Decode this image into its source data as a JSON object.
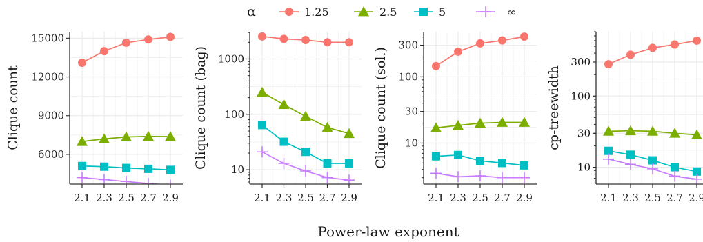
{
  "xlabel": "Power-law exponent",
  "legend": {
    "title": "α",
    "placement": "top"
  },
  "colors": {
    "1.25": "#F8766D",
    "2.5": "#7CAE00",
    "5": "#00BFC4",
    "inf": "#C77CFF",
    "grid": "#ebebeb",
    "axis": "#333333"
  },
  "chart_data": [
    {
      "type": "line",
      "ylabel": "Clique count",
      "scale": "linear",
      "ylim": [
        3700,
        15500
      ],
      "yticks": [
        6000,
        9000,
        12000,
        15000
      ],
      "ytick_labels": [
        "6000",
        "9000",
        "12000",
        "15000"
      ],
      "x": [
        2.1,
        2.3,
        2.5,
        2.7,
        2.9
      ],
      "xtick_labels": [
        "2.1",
        "2.3",
        "2.5",
        "2.7",
        "2.9"
      ],
      "series": [
        {
          "name": "1.25",
          "marker": "circle",
          "values": [
            13100,
            14000,
            14650,
            14900,
            15100
          ]
        },
        {
          "name": "2.5",
          "marker": "triangle",
          "values": [
            7000,
            7200,
            7350,
            7400,
            7380
          ]
        },
        {
          "name": "5",
          "marker": "square",
          "values": [
            5100,
            5050,
            4950,
            4880,
            4800
          ]
        },
        {
          "name": "∞",
          "marker": "cross",
          "values": [
            4200,
            4050,
            3900,
            3750,
            3620
          ]
        }
      ]
    },
    {
      "type": "line",
      "ylabel": "Clique count (bag)",
      "scale": "log10",
      "ylim": [
        5.5,
        3100
      ],
      "yticks": [
        10,
        100,
        1000
      ],
      "ytick_labels": [
        "10",
        "100",
        "1000"
      ],
      "x": [
        2.1,
        2.3,
        2.5,
        2.7,
        2.9
      ],
      "xtick_labels": [
        "2.1",
        "2.3",
        "2.5",
        "2.7",
        "2.9"
      ],
      "series": [
        {
          "name": "1.25",
          "marker": "circle",
          "values": [
            2550,
            2300,
            2200,
            2000,
            2000
          ]
        },
        {
          "name": "2.5",
          "marker": "triangle",
          "values": [
            250,
            150,
            92,
            58,
            45
          ]
        },
        {
          "name": "5",
          "marker": "square",
          "values": [
            64,
            32,
            21,
            13,
            13
          ]
        },
        {
          "name": "∞",
          "marker": "cross",
          "values": [
            21,
            13,
            9.5,
            7.2,
            6.5
          ]
        }
      ]
    },
    {
      "type": "line",
      "ylabel": "Clique count (sol.)",
      "scale": "log10",
      "ylim": [
        2.4,
        480
      ],
      "yticks": [
        10,
        30,
        100,
        300
      ],
      "ytick_labels": [
        "10",
        "30",
        "100",
        "300"
      ],
      "x": [
        2.1,
        2.3,
        2.5,
        2.7,
        2.9
      ],
      "xtick_labels": [
        "2.1",
        "2.3",
        "2.5",
        "2.7",
        "2.9"
      ],
      "series": [
        {
          "name": "1.25",
          "marker": "circle",
          "values": [
            145,
            240,
            320,
            355,
            405
          ]
        },
        {
          "name": "2.5",
          "marker": "triangle",
          "values": [
            17,
            18.5,
            20,
            20.5,
            20.5
          ]
        },
        {
          "name": "5",
          "marker": "square",
          "values": [
            6.3,
            6.6,
            5.4,
            5.0,
            4.6
          ]
        },
        {
          "name": "∞",
          "marker": "cross",
          "values": [
            3.5,
            3.1,
            3.2,
            3.0,
            3.0
          ]
        }
      ]
    },
    {
      "type": "line",
      "ylabel": "cp-treewidth",
      "scale": "log10",
      "ylim": [
        5.8,
        800
      ],
      "yticks": [
        10,
        30,
        100,
        300
      ],
      "ytick_labels": [
        "10",
        "30",
        "100",
        "300"
      ],
      "x": [
        2.1,
        2.3,
        2.5,
        2.7,
        2.9
      ],
      "xtick_labels": [
        "2.1",
        "2.3",
        "2.5",
        "2.7",
        "2.9"
      ],
      "series": [
        {
          "name": "1.25",
          "marker": "circle",
          "values": [
            280,
            380,
            475,
            530,
            600
          ]
        },
        {
          "name": "2.5",
          "marker": "triangle",
          "values": [
            32,
            32.5,
            32,
            30,
            28.5
          ]
        },
        {
          "name": "5",
          "marker": "square",
          "values": [
            17,
            15,
            12.5,
            10,
            8.7
          ]
        },
        {
          "name": "∞",
          "marker": "cross",
          "values": [
            13,
            11,
            9.5,
            7.5,
            6.8
          ]
        }
      ]
    }
  ]
}
